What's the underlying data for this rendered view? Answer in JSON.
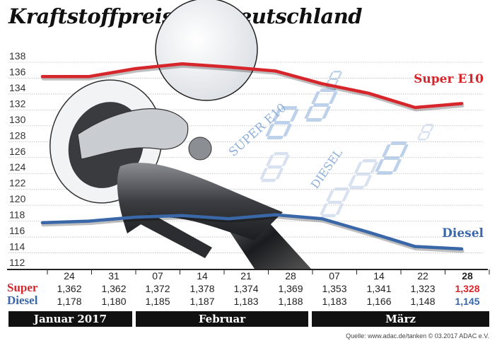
{
  "chart_data": {
    "type": "line",
    "title": "Kraftstoffpreise in Deutschland",
    "categories": [
      "24",
      "31",
      "07",
      "14",
      "21",
      "28",
      "07",
      "14",
      "22",
      "28"
    ],
    "months": [
      "Januar 2017",
      "Februar",
      "März"
    ],
    "ylim": [
      112,
      138
    ],
    "yticks": [
      112,
      114,
      116,
      118,
      120,
      122,
      124,
      126,
      128,
      130,
      132,
      134,
      136,
      138
    ],
    "grid": true,
    "series": [
      {
        "name": "Super E10",
        "row_label": "Super",
        "color": "#d7262b",
        "values": [
          136.2,
          136.2,
          137.2,
          137.8,
          137.4,
          136.9,
          135.3,
          134.1,
          132.3,
          132.8
        ],
        "table": [
          "1,362",
          "1,362",
          "1,372",
          "1,378",
          "1,374",
          "1,369",
          "1,353",
          "1,341",
          "1,323",
          "1,328"
        ]
      },
      {
        "name": "Diesel",
        "row_label": "Diesel",
        "color": "#3a67a8",
        "values": [
          117.8,
          118.0,
          118.5,
          118.7,
          118.3,
          118.8,
          118.3,
          116.6,
          114.8,
          114.5
        ],
        "table": [
          "1,178",
          "1,180",
          "1,185",
          "1,187",
          "1,183",
          "1,188",
          "1,183",
          "1,166",
          "1,148",
          "1,145"
        ]
      }
    ]
  },
  "illustration": {
    "label_super": "SUPER E10",
    "label_diesel": "DIESEL"
  },
  "source": "Quelle: www.adac.de/tanken   © 03.2017  ADAC e.V."
}
